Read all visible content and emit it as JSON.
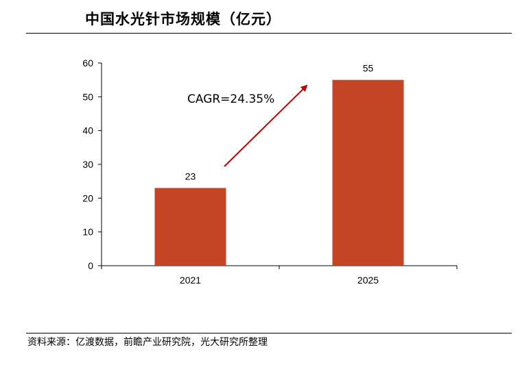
{
  "title": "中国水光针市场规模（亿元）",
  "source": "资料来源：亿渡数据，前瞻产业研究院，光大研究所整理",
  "colors": {
    "bar": "#C44426",
    "arrow": "#C00000"
  },
  "chart_data": {
    "type": "bar",
    "categories": [
      "2021",
      "2025"
    ],
    "values": [
      23,
      55
    ],
    "data_labels": [
      "23",
      "55"
    ],
    "ylim": [
      0,
      60
    ],
    "yticks": [
      0,
      10,
      20,
      30,
      40,
      50,
      60
    ],
    "annotation": "CAGR=24.35%",
    "grid": false,
    "legend": "none"
  }
}
